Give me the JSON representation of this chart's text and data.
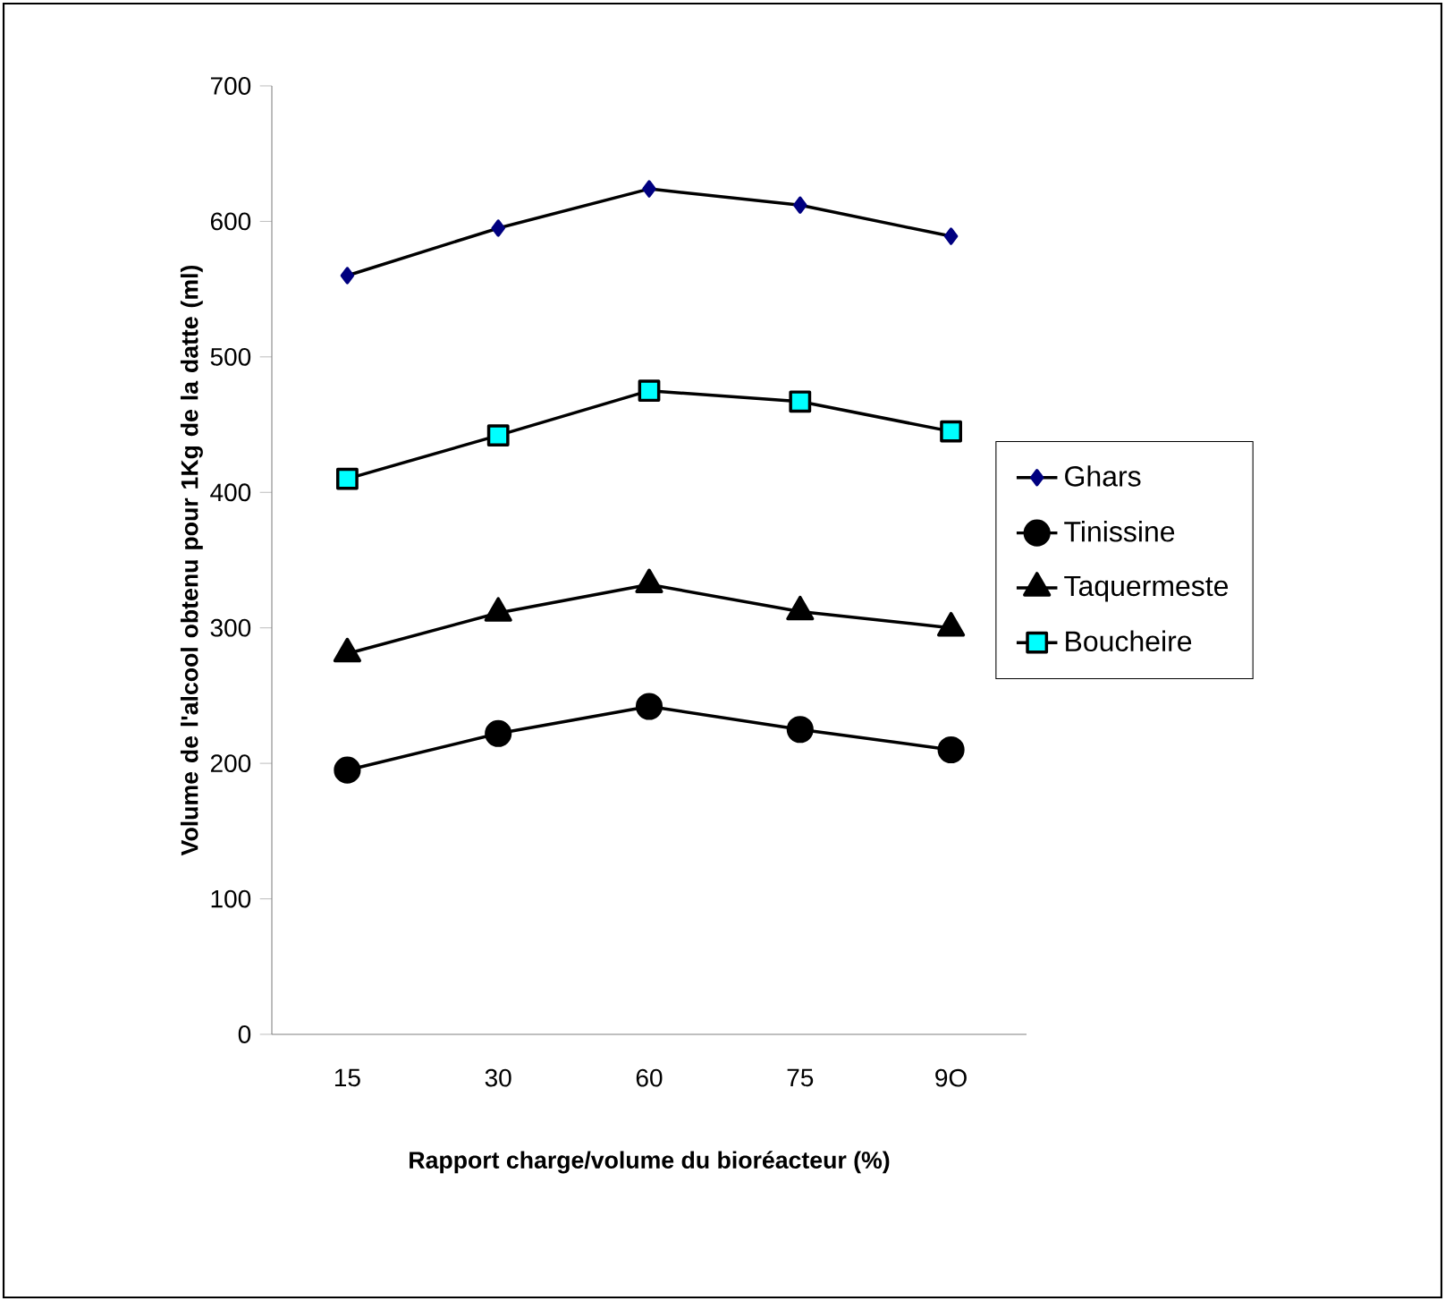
{
  "chart_data": {
    "type": "line",
    "xlabel": "Rapport charge/volume du bioréacteur (%)",
    "ylabel": "Volume de l'alcool obtenu pour 1Kg de la datte (ml)",
    "categories": [
      "15",
      "30",
      "60",
      "75",
      "9O"
    ],
    "ylim": [
      0,
      700
    ],
    "yticks": [
      0,
      100,
      200,
      300,
      400,
      500,
      600,
      700
    ],
    "grid": false,
    "legend": "right",
    "series": [
      {
        "name": "Ghars",
        "color": "#000080",
        "marker": "diamond",
        "values": [
          560,
          595,
          624,
          612,
          589
        ]
      },
      {
        "name": "Tinissine",
        "color": "#000000",
        "marker": "circle",
        "values": [
          195,
          222,
          242,
          225,
          210
        ]
      },
      {
        "name": "Taquermeste",
        "color": "#000000",
        "marker": "triangle",
        "values": [
          281,
          311,
          332,
          312,
          300
        ]
      },
      {
        "name": "Boucheire",
        "color": "#00ffff",
        "marker": "square",
        "values": [
          410,
          442,
          475,
          467,
          445
        ]
      }
    ]
  }
}
